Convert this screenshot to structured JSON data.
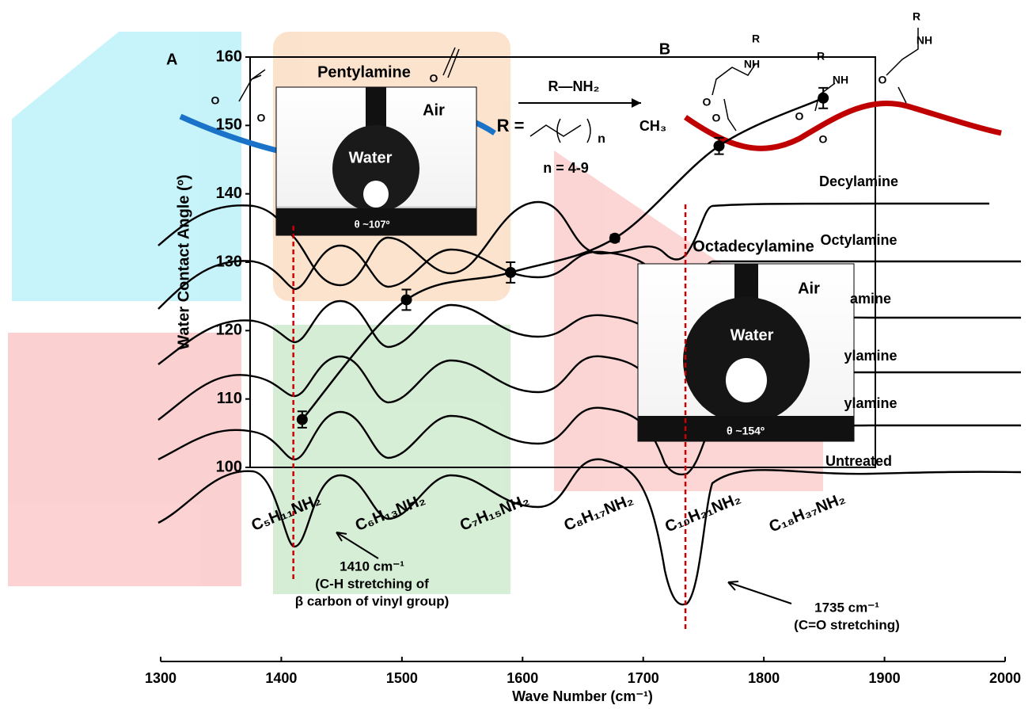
{
  "chart_data": {
    "type": "line",
    "panel_label": "A",
    "y_label": "Water Contact Angle (º)",
    "x_label": "Wave Number (cm⁻¹)",
    "categories": [
      "C₅H₁₁NH₂",
      "C₆H₁₃NH₂",
      "C₇H₁₅NH₂",
      "C₈H₁₇NH₂",
      "C₁₀H₂₁NH₂",
      "C₁₈H₃₇NH₂"
    ],
    "values": [
      107,
      124.5,
      128.5,
      133.5,
      147,
      154
    ],
    "errors": [
      1.2,
      1.5,
      1.5,
      0.5,
      1.2,
      1.5
    ],
    "color": "#000000",
    "ylim": [
      100,
      160
    ],
    "yticks": [
      100,
      110,
      120,
      130,
      140,
      150,
      160
    ],
    "xlim": [
      1300,
      2000
    ],
    "xticks": [
      1300,
      1400,
      1500,
      1600,
      1700,
      1800,
      1900,
      2000
    ],
    "spectra_labels": [
      "Decylamine",
      "Octylamine",
      "amine",
      "ylamine",
      "ylamine",
      "Untreated"
    ],
    "reference_lines": [
      {
        "x": 1410,
        "label": [
          "1410 cm⁻¹",
          "(C-H stretching of",
          "β carbon of vinyl group)"
        ]
      },
      {
        "x": 1735,
        "label": [
          "1735 cm⁻¹",
          "(C=O stretching)"
        ]
      }
    ],
    "reference_color": "#cc0000"
  },
  "insets": [
    {
      "title": "Pentylamine",
      "labels": [
        "Air",
        "Water",
        "θ ~107º"
      ]
    },
    {
      "title": "Octadecylamine",
      "labels": [
        "Air",
        "Water",
        "θ ~154º"
      ]
    }
  ],
  "scheme": {
    "label": "B",
    "reagent": "R—NH₂",
    "r_def": "R =",
    "ch3": "CH₃",
    "n": "n",
    "n_range": "n = 4-9",
    "atoms": [
      "O",
      "O",
      "O",
      "R",
      "NH",
      "O",
      "O",
      "R",
      "NH",
      "O",
      "O",
      "R",
      "NH",
      "O"
    ]
  }
}
